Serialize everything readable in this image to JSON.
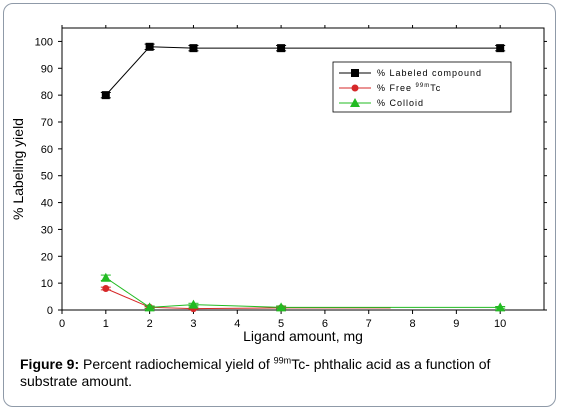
{
  "caption": {
    "label": "Figure 9:",
    "text_before": " Percent radiochemical yield of ",
    "isotope_sup": "99m",
    "text_after": "Tc- phthalic acid as a function of substrate amount."
  },
  "chart_data": {
    "type": "line",
    "xlabel": "Ligand amount, mg",
    "ylabel": "% Labeling yield",
    "xlim": [
      0,
      11
    ],
    "ylim": [
      0,
      105
    ],
    "x_ticks": [
      0,
      1,
      2,
      3,
      4,
      5,
      6,
      7,
      8,
      9,
      10
    ],
    "y_ticks": [
      0,
      10,
      20,
      30,
      40,
      50,
      60,
      70,
      80,
      90,
      100
    ],
    "grid": false,
    "legend_position": "top-right",
    "series": [
      {
        "name": "% Labeled compound",
        "color": "#000000",
        "marker": "square",
        "x": [
          1,
          2,
          3,
          5,
          10
        ],
        "y": [
          80,
          98,
          97.5,
          97.5,
          97.5
        ],
        "errors": [
          1,
          1,
          1,
          1,
          1
        ]
      },
      {
        "name_prefix": "% Free ",
        "name_sup": "99m",
        "name_suffix": "Tc",
        "color": "#d62728",
        "marker": "circle",
        "x": [
          1,
          2,
          3,
          5,
          7.5
        ],
        "y": [
          8,
          1,
          0.5,
          0.8,
          0.8
        ],
        "errors": [
          0.5,
          0.3,
          0.3,
          0.3,
          0
        ]
      },
      {
        "name": "% Colloid",
        "color": "#22bb22",
        "marker": "triangle",
        "x": [
          1,
          2,
          3,
          5,
          10
        ],
        "y": [
          12,
          1,
          2,
          1,
          1
        ],
        "errors": [
          1,
          0.5,
          0.5,
          0.5,
          0.3
        ]
      }
    ]
  }
}
